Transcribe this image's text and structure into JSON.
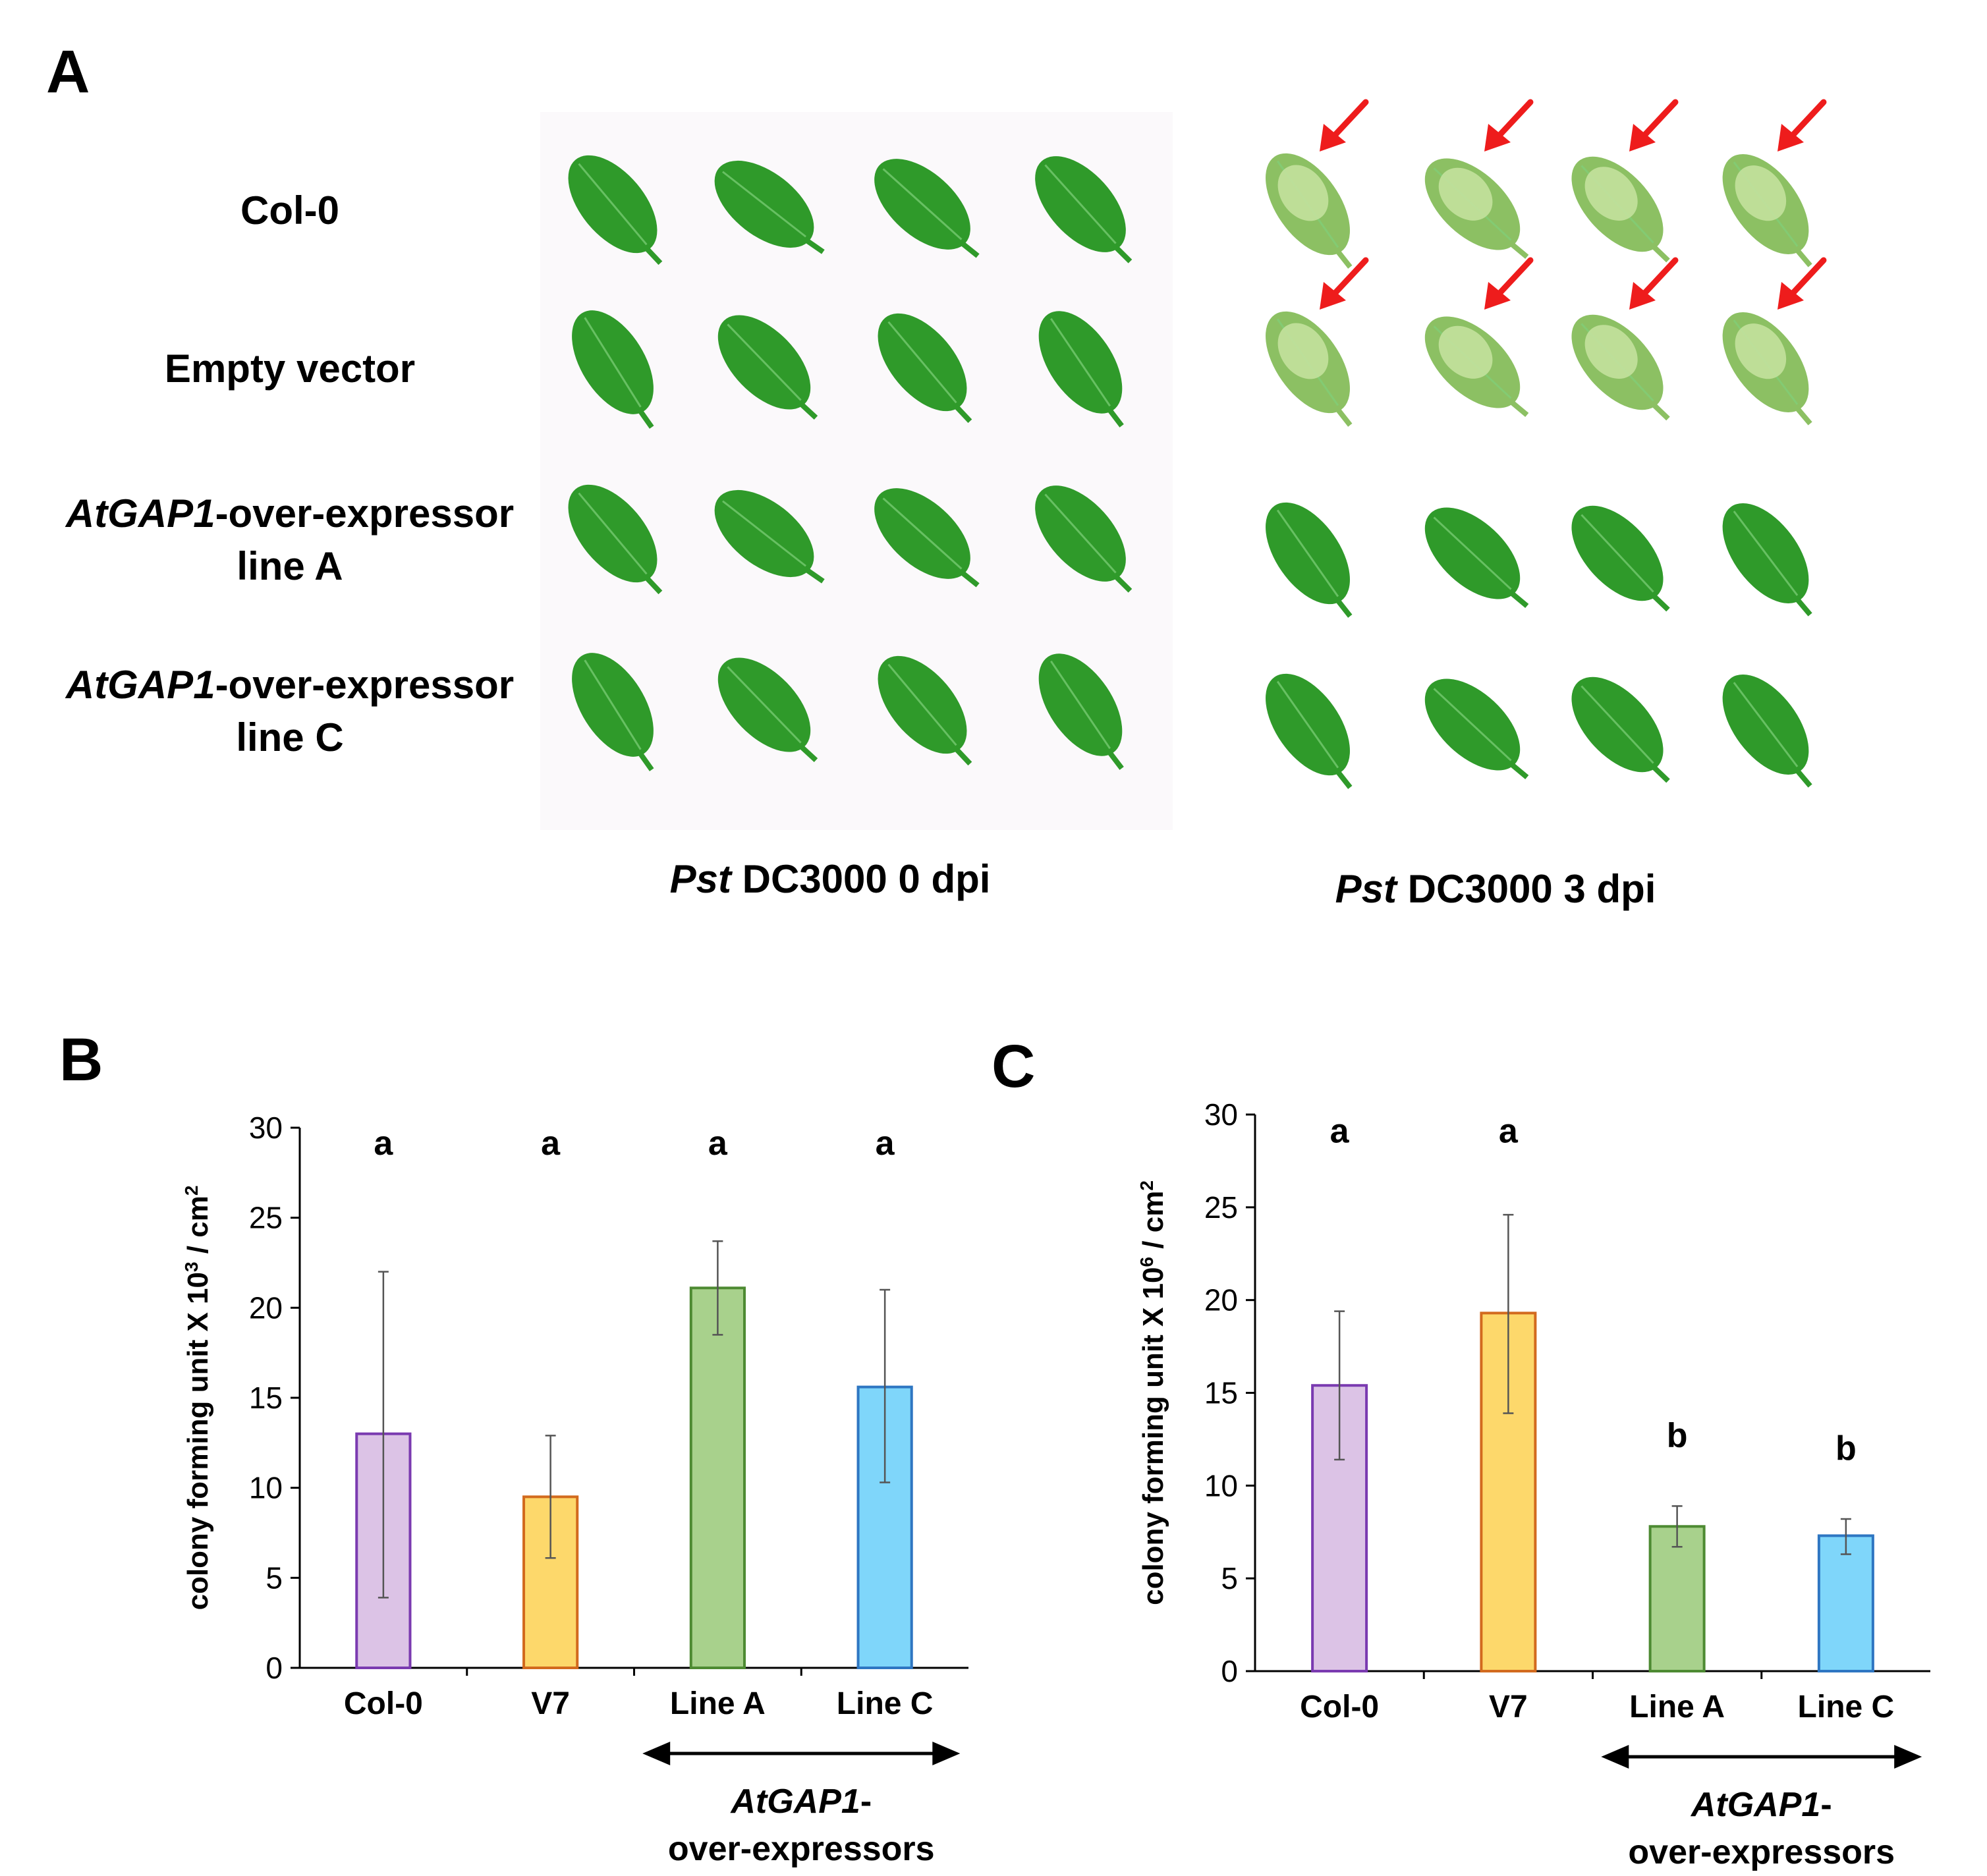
{
  "panel_a": {
    "letter": "A",
    "rows": [
      {
        "label_html": "Col-0",
        "diseased_3dpi": true
      },
      {
        "label_html": "Empty vector",
        "diseased_3dpi": true
      },
      {
        "label_html": "<tspan font-style='italic'>AtGAP1</tspan>-over-expressor",
        "label2": "line A",
        "diseased_3dpi": false
      },
      {
        "label_html": "<tspan font-style='italic'>AtGAP1</tspan>-over-expressor",
        "label2": "line C",
        "diseased_3dpi": false
      }
    ],
    "conditions": [
      {
        "label_html": "<tspan font-style='italic'>Pst</tspan> DC3000 0 dpi"
      },
      {
        "label_html": "<tspan font-style='italic'>Pst</tspan> DC3000 3 dpi"
      }
    ],
    "leaf_color_healthy": "#2f9a2a",
    "leaf_color_diseased": "#8cc063",
    "arrow_color": "#ee1c1c"
  },
  "chart_data": [
    {
      "panel": "B",
      "type": "bar",
      "categories": [
        "Col-0",
        "V7",
        "Line A",
        "Line C"
      ],
      "values": [
        13.0,
        9.5,
        21.1,
        15.6
      ],
      "error_low": [
        3.9,
        6.1,
        18.5,
        10.3
      ],
      "error_high": [
        22.0,
        12.9,
        23.7,
        21.0
      ],
      "significance": [
        "a",
        "a",
        "a",
        "a"
      ],
      "ylabel_html": "colony forming unit X 10<tspan baseline-shift='super' font-size='28'>3</tspan> / cm<tspan baseline-shift='super' font-size='28'>2</tspan>",
      "ylim": [
        0,
        30
      ],
      "yticks": [
        0,
        5,
        10,
        15,
        20,
        25,
        30
      ],
      "group_label_line1_html": "<tspan font-style='italic'>AtGAP1</tspan>-",
      "group_label_line2": "over-expressors",
      "bar_fill": [
        "#dcc3e6",
        "#fdd86b",
        "#a8d18c",
        "#7fd6fa"
      ],
      "bar_stroke": [
        "#7a3ab0",
        "#d26a1e",
        "#4d8a32",
        "#2e76c2"
      ]
    },
    {
      "panel": "C",
      "type": "bar",
      "categories": [
        "Col-0",
        "V7",
        "Line A",
        "Line C"
      ],
      "values": [
        15.4,
        19.3,
        7.8,
        7.3
      ],
      "error_low": [
        11.4,
        13.9,
        6.7,
        6.3
      ],
      "error_high": [
        19.4,
        24.6,
        8.9,
        8.2
      ],
      "significance": [
        "a",
        "a",
        "b",
        "b"
      ],
      "ylabel_html": "colony forming unit X 10<tspan baseline-shift='super' font-size='28'>6</tspan> / cm<tspan baseline-shift='super' font-size='28'>2</tspan>",
      "ylim": [
        0,
        30
      ],
      "yticks": [
        0,
        5,
        10,
        15,
        20,
        25,
        30
      ],
      "group_label_line1_html": "<tspan font-style='italic'>AtGAP1</tspan>-",
      "group_label_line2": "over-expressors",
      "bar_fill": [
        "#dcc3e6",
        "#fdd86b",
        "#a8d18c",
        "#7fd6fa"
      ],
      "bar_stroke": [
        "#7a3ab0",
        "#d26a1e",
        "#4d8a32",
        "#2e76c2"
      ]
    }
  ]
}
